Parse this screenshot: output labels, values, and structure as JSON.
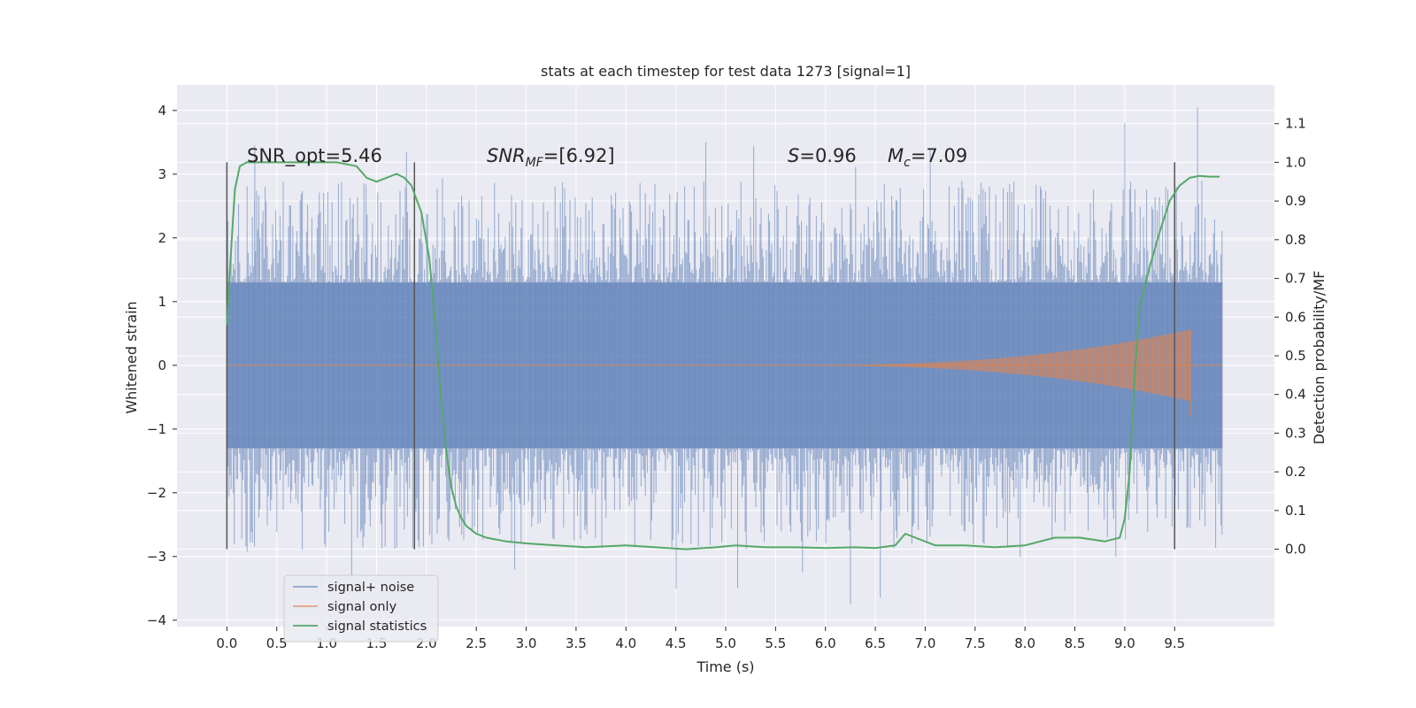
{
  "chart_data": {
    "type": "line",
    "title": "stats at each timestep for test data 1273 [signal=1]",
    "xlabel": "Time (s)",
    "ylabel": "Whitened strain",
    "ylabel_right": "Detection probability/MF",
    "xlim": [
      -0.5,
      10.5
    ],
    "ylim": [
      -4.1,
      4.4
    ],
    "ylim_right": [
      -0.2,
      1.2
    ],
    "x_ticks": [
      0.0,
      0.5,
      1.0,
      1.5,
      2.0,
      2.5,
      3.0,
      3.5,
      4.0,
      4.5,
      5.0,
      5.5,
      6.0,
      6.5,
      7.0,
      7.5,
      8.0,
      8.5,
      9.0,
      9.5
    ],
    "x_tick_labels": [
      "0.0",
      "0.5",
      "1.0",
      "1.5",
      "2.0",
      "2.5",
      "3.0",
      "3.5",
      "4.0",
      "4.5",
      "5.0",
      "5.5",
      "6.0",
      "6.5",
      "7.0",
      "7.5",
      "8.0",
      "8.5",
      "9.0",
      "9.5"
    ],
    "y_ticks": [
      4,
      3,
      2,
      1,
      0,
      -1,
      -2,
      -3,
      -4
    ],
    "y_tick_labels": [
      "4",
      "3",
      "2",
      "1",
      "0",
      "−1",
      "−2",
      "−3",
      "−4"
    ],
    "y_right_ticks": [
      1.1,
      1.0,
      0.9,
      0.8,
      0.7,
      0.6,
      0.5,
      0.4,
      0.3,
      0.2,
      0.1,
      0.0
    ],
    "y_right_tick_labels": [
      "1.1",
      "1.0",
      "0.9",
      "0.8",
      "0.7",
      "0.6",
      "0.5",
      "0.4",
      "0.3",
      "0.2",
      "0.1",
      "0.0"
    ],
    "grid": true,
    "legend_position": "lower-left",
    "annotations": {
      "snr_opt": "SNR_opt=5.46",
      "snr_mf_base": "SNR",
      "snr_mf_sub": "MF",
      "snr_mf_value": "=[6.92]",
      "s_symbol": "S",
      "s_value": "=0.96",
      "mc_base": "M",
      "mc_sub": "c",
      "mc_value": "=7.09"
    },
    "vertical_markers": [
      0.0,
      1.88,
      9.5
    ],
    "series": [
      {
        "name": "signal+ noise",
        "color": "#4c72b0",
        "style": "noise band",
        "x_range": [
          0.0,
          9.98
        ],
        "band_core": [
          -1.3,
          1.3
        ],
        "notable_peaks": [
          [
            0.28,
            3.45
          ],
          [
            1.8,
            3.35
          ],
          [
            4.8,
            3.5
          ],
          [
            7.05,
            3.4
          ],
          [
            9.0,
            3.8
          ],
          [
            9.73,
            4.05
          ],
          [
            1.25,
            -3.3
          ],
          [
            5.12,
            -3.5
          ],
          [
            6.25,
            -3.75
          ],
          [
            6.55,
            -3.65
          ]
        ]
      },
      {
        "name": "signal only",
        "color": "#dd8452",
        "style": "chirp",
        "x_range": [
          0.0,
          9.98
        ],
        "chirp_start": 5.6,
        "chirp_peak_time": 9.66,
        "chirp_peak_amplitude": 0.55
      },
      {
        "name": "signal statistics",
        "color": "#55a868",
        "axis": "right",
        "x": [
          0.0,
          0.03,
          0.08,
          0.13,
          0.2,
          0.3,
          0.5,
          0.8,
          1.1,
          1.3,
          1.4,
          1.5,
          1.6,
          1.7,
          1.78,
          1.85,
          1.95,
          2.03,
          2.1,
          2.15,
          2.2,
          2.25,
          2.3,
          2.35,
          2.4,
          2.5,
          2.6,
          2.8,
          3.0,
          3.3,
          3.6,
          4.0,
          4.3,
          4.6,
          4.9,
          5.1,
          5.4,
          5.7,
          6.0,
          6.3,
          6.5,
          6.7,
          6.8,
          6.9,
          7.1,
          7.4,
          7.7,
          8.0,
          8.3,
          8.55,
          8.8,
          8.95,
          9.0,
          9.05,
          9.1,
          9.15,
          9.25,
          9.35,
          9.45,
          9.55,
          9.65,
          9.75,
          9.85,
          9.95
        ],
        "y": [
          0.58,
          0.72,
          0.93,
          0.99,
          1.0,
          1.0,
          1.0,
          1.0,
          1.0,
          0.99,
          0.96,
          0.95,
          0.96,
          0.97,
          0.96,
          0.94,
          0.87,
          0.75,
          0.55,
          0.38,
          0.25,
          0.16,
          0.11,
          0.08,
          0.06,
          0.04,
          0.03,
          0.02,
          0.015,
          0.01,
          0.005,
          0.01,
          0.005,
          0.0,
          0.005,
          0.01,
          0.005,
          0.005,
          0.003,
          0.005,
          0.003,
          0.01,
          0.04,
          0.03,
          0.01,
          0.01,
          0.005,
          0.01,
          0.03,
          0.03,
          0.02,
          0.03,
          0.08,
          0.2,
          0.45,
          0.63,
          0.73,
          0.82,
          0.9,
          0.94,
          0.96,
          0.965,
          0.963,
          0.963
        ]
      }
    ]
  }
}
